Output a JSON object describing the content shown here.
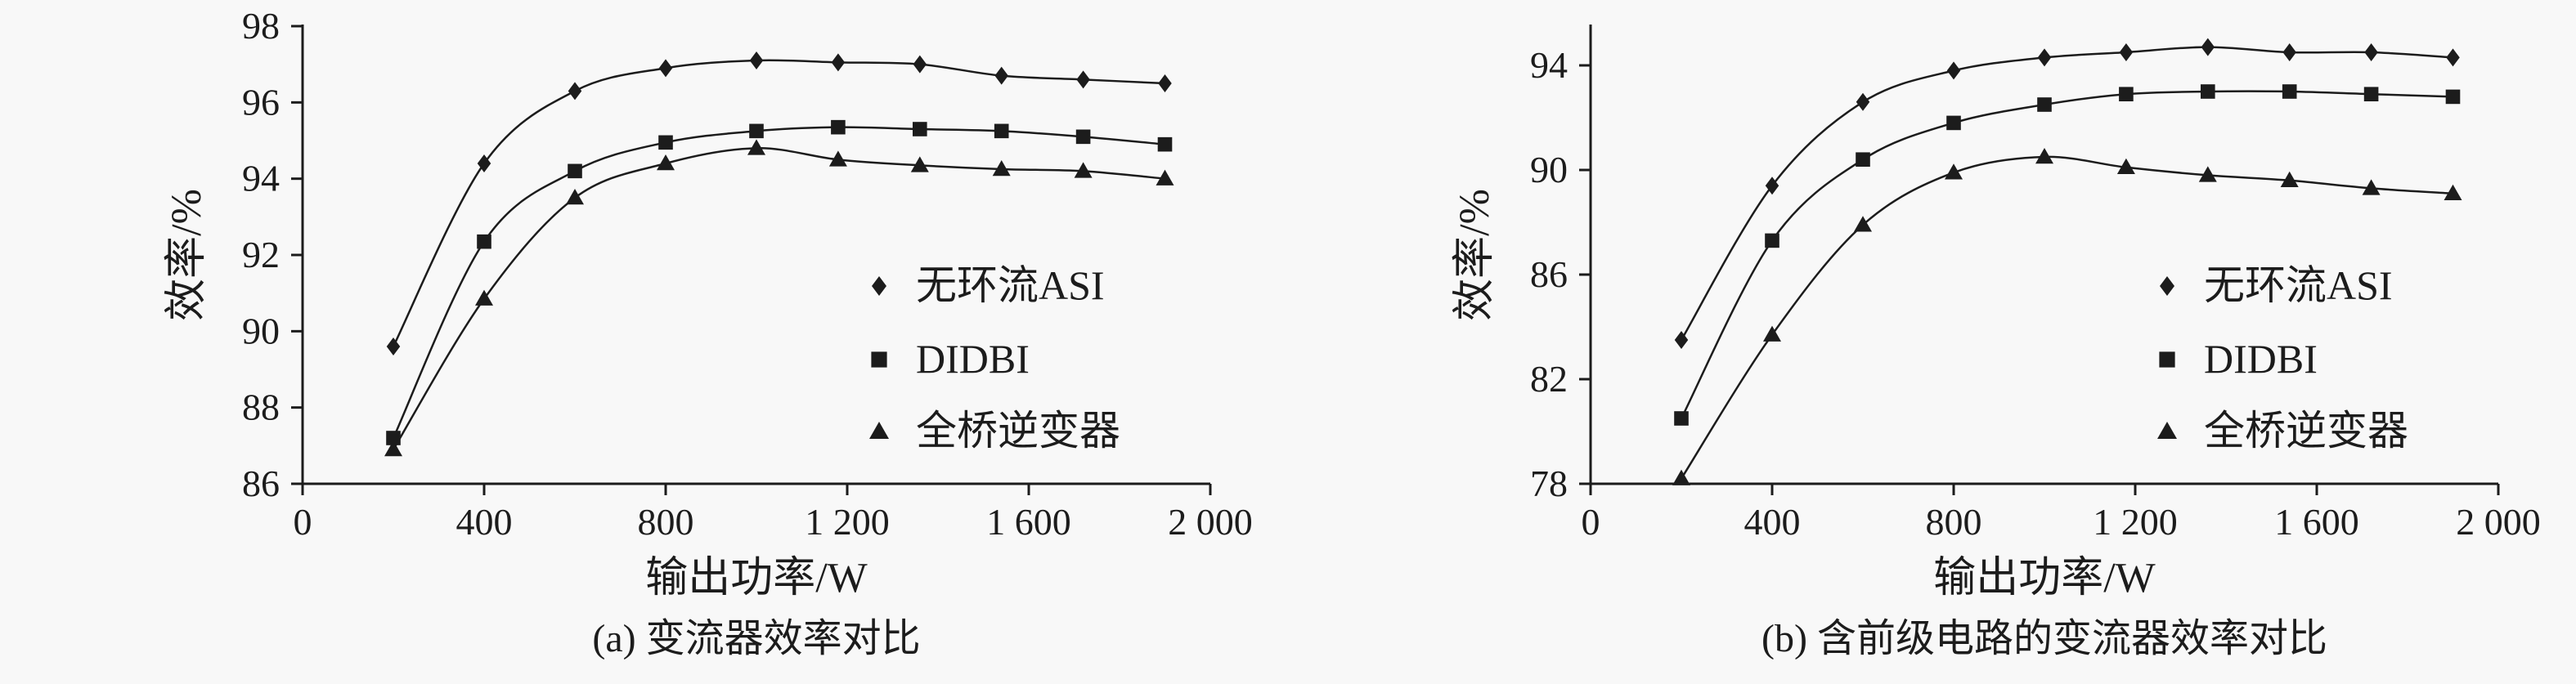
{
  "page": {
    "background": "#f8f8f8",
    "ink": "#1c1c1c"
  },
  "chart_data": [
    {
      "type": "line",
      "caption": "(a) 变流器效率对比",
      "xlabel": "输出功率/W",
      "ylabel": "效率/%",
      "xlim": [
        0,
        2000
      ],
      "ylim": [
        86,
        98
      ],
      "xticks": [
        0,
        400,
        800,
        1200,
        1600,
        2000
      ],
      "xtick_labels": [
        "0",
        "400",
        "800",
        "1 200",
        "1 600",
        "2 000"
      ],
      "yticks": [
        86,
        88,
        90,
        92,
        94,
        96,
        98
      ],
      "grid": false,
      "legend_position": "inside-right",
      "x": [
        200,
        400,
        600,
        800,
        1000,
        1180,
        1360,
        1540,
        1720,
        1900
      ],
      "series": [
        {
          "name": "无环流ASI",
          "marker": "diamond",
          "values": [
            89.6,
            94.4,
            96.3,
            96.9,
            97.1,
            97.05,
            97.0,
            96.7,
            96.6,
            96.5
          ]
        },
        {
          "name": "DIDBI",
          "marker": "square",
          "values": [
            87.2,
            92.35,
            94.2,
            94.95,
            95.25,
            95.35,
            95.3,
            95.25,
            95.1,
            94.9
          ]
        },
        {
          "name": "全桥逆变器",
          "marker": "triangle",
          "values": [
            86.9,
            90.85,
            93.5,
            94.4,
            94.8,
            94.5,
            94.35,
            94.25,
            94.2,
            94.0
          ]
        }
      ]
    },
    {
      "type": "line",
      "caption": "(b) 含前级电路的变流器效率对比",
      "xlabel": "输出功率/W",
      "ylabel": "效率/%",
      "xlim": [
        0,
        2000
      ],
      "ylim": [
        78,
        95.5
      ],
      "xticks": [
        0,
        400,
        800,
        1200,
        1600,
        2000
      ],
      "xtick_labels": [
        "0",
        "400",
        "800",
        "1 200",
        "1 600",
        "2 000"
      ],
      "yticks": [
        78,
        82,
        86,
        90,
        94
      ],
      "grid": false,
      "legend_position": "inside-right",
      "x": [
        200,
        400,
        600,
        800,
        1000,
        1180,
        1360,
        1540,
        1720,
        1900
      ],
      "series": [
        {
          "name": "无环流ASI",
          "marker": "diamond",
          "values": [
            83.5,
            89.4,
            92.6,
            93.8,
            94.3,
            94.5,
            94.7,
            94.5,
            94.5,
            94.3
          ]
        },
        {
          "name": "DIDBI",
          "marker": "square",
          "values": [
            80.5,
            87.3,
            90.4,
            91.8,
            92.5,
            92.9,
            93.0,
            93.0,
            92.9,
            92.8
          ]
        },
        {
          "name": "全桥逆变器",
          "marker": "triangle",
          "values": [
            78.2,
            83.7,
            87.9,
            89.9,
            90.5,
            90.1,
            89.8,
            89.6,
            89.3,
            89.1
          ]
        }
      ]
    }
  ]
}
